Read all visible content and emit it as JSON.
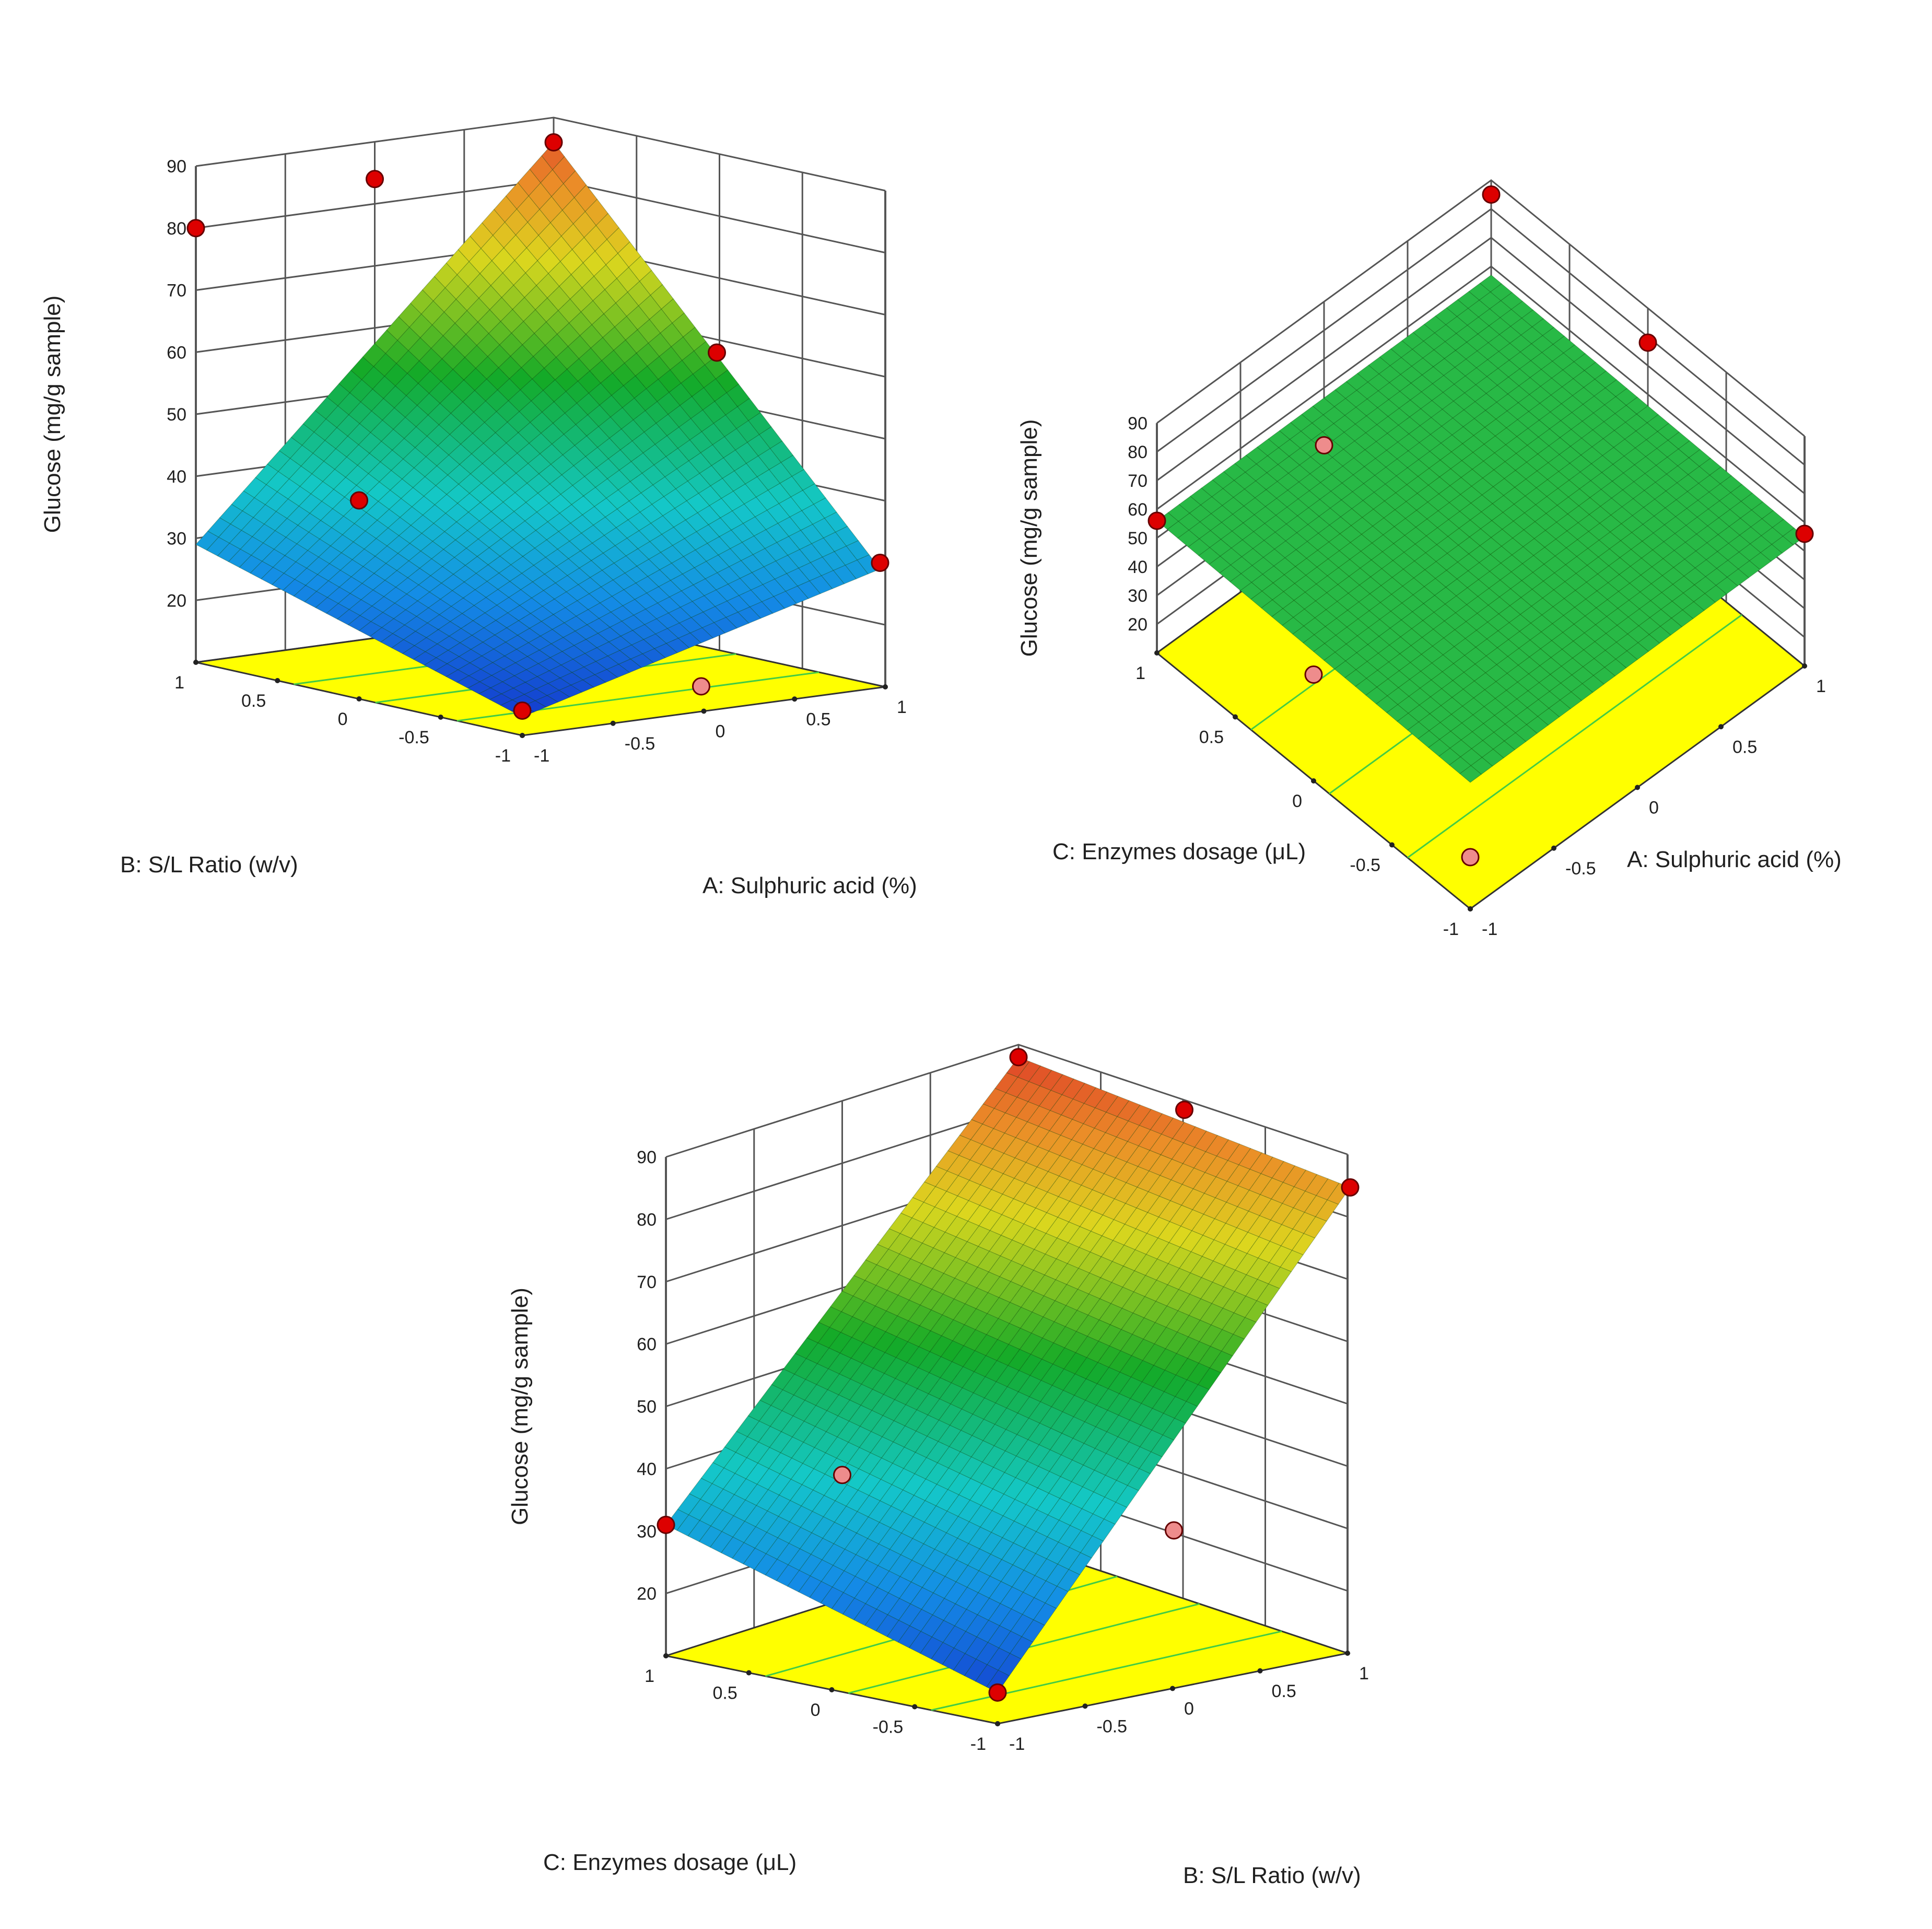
{
  "chart_data": [
    {
      "type": "surface3d",
      "z_label": "Glucose (mg/g sample)",
      "z_ticks": [
        "20",
        "30",
        "40",
        "50",
        "60",
        "70",
        "80",
        "90"
      ],
      "zlim": [
        10,
        90
      ],
      "left_axis": {
        "label": "B: S/L Ratio (w/v)",
        "ticks": [
          "1",
          "0.5",
          "0",
          "-0.5",
          "-1"
        ]
      },
      "right_axis": {
        "label": "A: Sulphuric acid (%)",
        "ticks": [
          "-1",
          "-0.5",
          "0",
          "0.5",
          "1"
        ]
      },
      "corner_values": {
        "left_low": 29,
        "right_low": 29,
        "near": 13,
        "far": 86
      },
      "floor_color": "#ffff00",
      "design_points": [
        {
          "left": 1,
          "right": -1,
          "z": 80
        },
        {
          "left": 1,
          "right": 0,
          "z": 84
        },
        {
          "left": 1,
          "right": 1,
          "z": 86
        },
        {
          "left": 0,
          "right": 1,
          "z": 58
        },
        {
          "left": -1,
          "right": 1,
          "z": 30
        },
        {
          "left": -1,
          "right": -1,
          "z": 14
        },
        {
          "left": -1,
          "right": 0,
          "z": 14
        },
        {
          "left": 0,
          "right": -1,
          "z": 42
        }
      ]
    },
    {
      "type": "surface3d",
      "z_label": "Glucose (mg/g sample)",
      "z_ticks": [
        "20",
        "30",
        "40",
        "50",
        "60",
        "70",
        "80",
        "90"
      ],
      "zlim": [
        10,
        90
      ],
      "left_axis": {
        "label": "C: Enzymes dosage (μL)",
        "ticks": [
          "1",
          "0.5",
          "0",
          "-0.5",
          "-1"
        ]
      },
      "right_axis": {
        "label": "A: Sulphuric acid (%)",
        "ticks": [
          "-1",
          "-0.5",
          "0",
          "0.5",
          "1"
        ]
      },
      "corner_values": {
        "left_low": 56,
        "right_low": 55,
        "near": 54,
        "far": 57
      },
      "floor_color": "#ffff00",
      "design_points": [
        {
          "left": 1,
          "right": 1,
          "z": 85
        },
        {
          "left": 0,
          "right": 1,
          "z": 78
        },
        {
          "left": -1,
          "right": 1,
          "z": 56
        },
        {
          "left": 1,
          "right": -1,
          "z": 56
        },
        {
          "left": 1,
          "right": 0,
          "z": 40
        },
        {
          "left": -1,
          "right": -1,
          "z": 28
        },
        {
          "left": 0,
          "right": -1,
          "z": 47
        }
      ]
    },
    {
      "type": "surface3d",
      "z_label": "Glucose (mg/g sample)",
      "z_ticks": [
        "20",
        "30",
        "40",
        "50",
        "60",
        "70",
        "80",
        "90"
      ],
      "zlim": [
        10,
        90
      ],
      "left_axis": {
        "label": "C: Enzymes dosage (μL)",
        "ticks": [
          "1",
          "0.5",
          "0",
          "-0.5",
          "-1"
        ]
      },
      "right_axis": {
        "label": "B: S/L Ratio (w/v)",
        "ticks": [
          "-1",
          "-0.5",
          "0",
          "0.5",
          "1"
        ]
      },
      "corner_values": {
        "left_low": 31,
        "right_low": 78,
        "near": 15,
        "far": 88
      },
      "floor_color": "#ffff00",
      "design_points": [
        {
          "left": 1,
          "right": 1,
          "z": 88
        },
        {
          "left": 0,
          "right": 1,
          "z": 85
        },
        {
          "left": -1,
          "right": 1,
          "z": 78
        },
        {
          "left": 1,
          "right": -1,
          "z": 31
        },
        {
          "left": -1,
          "right": 0,
          "z": 32
        },
        {
          "left": -1,
          "right": -1,
          "z": 15
        },
        {
          "left": 1,
          "right": 0,
          "z": 30
        }
      ]
    }
  ]
}
